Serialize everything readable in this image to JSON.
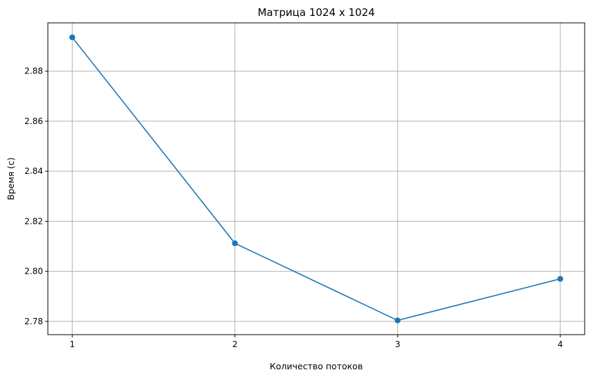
{
  "chart_data": {
    "type": "line",
    "title": "Матрица 1024 x 1024",
    "xlabel": "Количество потоков",
    "ylabel": "Время (с)",
    "x": [
      1,
      2,
      3,
      4
    ],
    "x_ticks": [
      "1",
      "2",
      "3",
      "4"
    ],
    "y_ticks": [
      2.78,
      2.8,
      2.82,
      2.84,
      2.86,
      2.88
    ],
    "y_tick_labels": [
      "2.78",
      "2.80",
      "2.82",
      "2.84",
      "2.86",
      "2.88"
    ],
    "xlim": [
      0.85,
      4.15
    ],
    "ylim": [
      2.7747,
      2.8993
    ],
    "grid": true,
    "series": [
      {
        "color": "#1f77b4",
        "marker": "circle",
        "values": [
          2.8935,
          2.8112,
          2.7804,
          2.797
        ]
      }
    ]
  }
}
